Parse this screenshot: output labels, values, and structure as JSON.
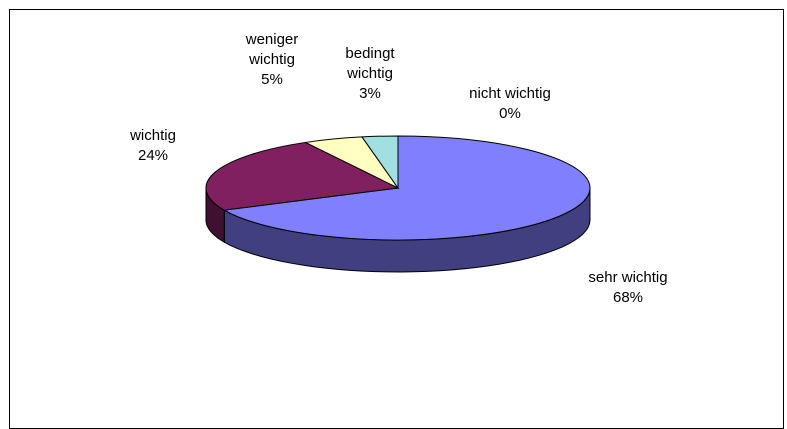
{
  "chart_data": {
    "type": "pie",
    "categories": [
      "sehr wichtig",
      "wichtig",
      "weniger wichtig",
      "bedingt wichtig",
      "nicht wichtig"
    ],
    "values": [
      68,
      24,
      5,
      3,
      0
    ],
    "value_labels": [
      "68%",
      "24%",
      "5%",
      "3%",
      "0%"
    ],
    "colors": [
      "#8080ff",
      "#802060",
      "#ffffc0",
      "#a0e0e0",
      "#ffffff"
    ],
    "three_d": true
  }
}
